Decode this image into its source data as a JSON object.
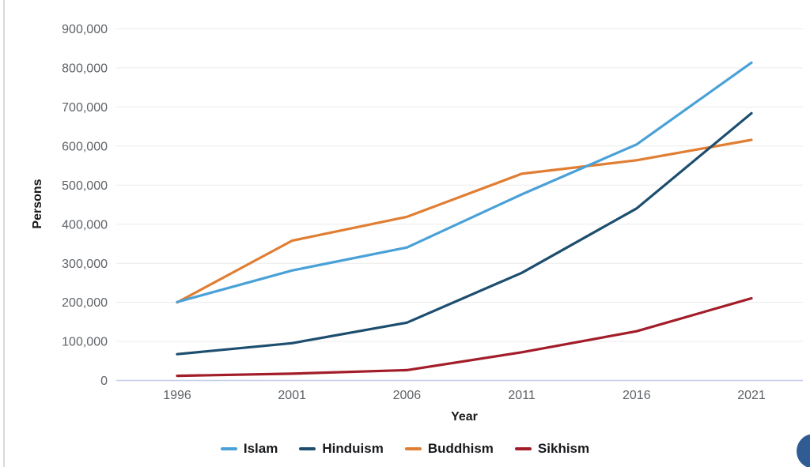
{
  "chart_data": {
    "type": "line",
    "x_labels": [
      "1996",
      "2001",
      "2006",
      "2011",
      "2016",
      "2021"
    ],
    "series": [
      {
        "name": "Islam",
        "color": "#4aa1d7",
        "values": [
          200900,
          281600,
          340400,
          476300,
          604200,
          813400
        ]
      },
      {
        "name": "Hinduism",
        "color": "#1d4e6f",
        "values": [
          67300,
          95500,
          148100,
          275500,
          440300,
          684000
        ]
      },
      {
        "name": "Buddhism",
        "color": "#e07e33",
        "values": [
          199800,
          357800,
          418800,
          529000,
          563700,
          615800
        ]
      },
      {
        "name": "Sikhism",
        "color": "#a21d29",
        "values": [
          12000,
          17400,
          26400,
          72300,
          125900,
          210400
        ]
      }
    ],
    "xlabel": "Year",
    "ylabel": "Persons",
    "ylim": [
      0,
      900000
    ],
    "ytick_step": 100000,
    "ytick_labels": [
      "0",
      "100,000",
      "200,000",
      "300,000",
      "400,000",
      "500,000",
      "600,000",
      "700,000",
      "800,000",
      "900,000"
    ],
    "grid": "horizontal-only",
    "legend_position": "bottom"
  },
  "styles": {
    "gridline_color": "#ececec",
    "zero_axis_color": "#c2ceeb",
    "tick_label_color": "#5f6368",
    "axis_title_color": "#17191c",
    "legend_text_color": "#17191c",
    "left_border_color": "#d6dae0",
    "fab_color": "#305c93"
  }
}
